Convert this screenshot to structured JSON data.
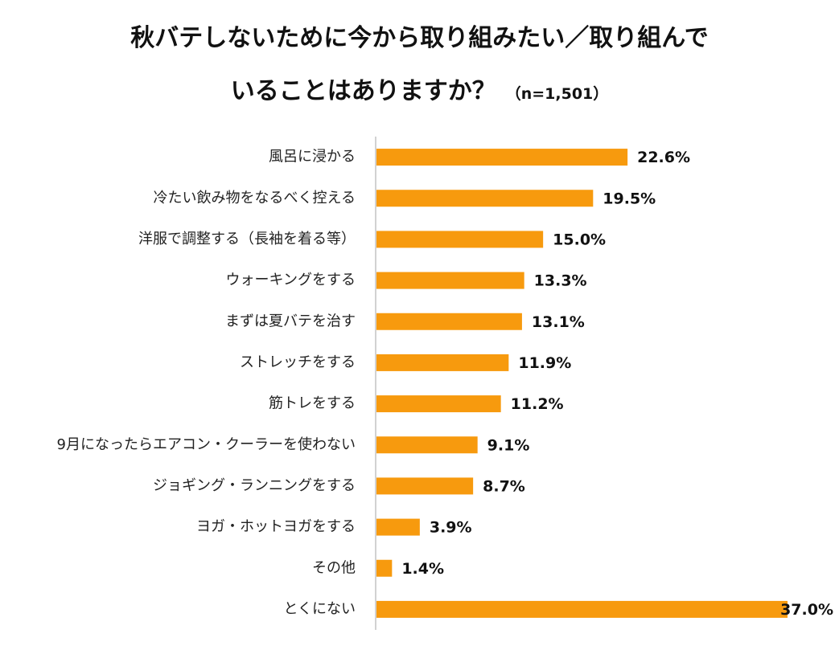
{
  "title": {
    "line1": "秋バテしないために今から取り組みたい／取り組んで",
    "line2": "いることはありますか？",
    "note": "（n=1,501）"
  },
  "colors": {
    "bar": "#F79A0E",
    "axis": "#A6A6A6"
  },
  "chart_data": {
    "type": "bar",
    "orientation": "horizontal",
    "categories": [
      "風呂に浸かる",
      "冷たい飲み物をなるべく控える",
      "洋服で調整する（長袖を着る等）",
      "ウォーキングをする",
      "まずは夏バテを治す",
      "ストレッチをする",
      "筋トレをする",
      "9月になったらエアコン・クーラーを使わない",
      "ジョギング・ランニングをする",
      "ヨガ・ホットヨガをする",
      "その他",
      "とくにない"
    ],
    "values": [
      22.6,
      19.5,
      15.0,
      13.3,
      13.1,
      11.9,
      11.2,
      9.1,
      8.7,
      3.9,
      1.4,
      37.0
    ],
    "value_labels": [
      "22.6%",
      "19.5%",
      "15.0%",
      "13.3%",
      "13.1%",
      "11.9%",
      "11.2%",
      "9.1%",
      "8.7%",
      "3.9%",
      "1.4%",
      "37.0%"
    ],
    "unit": "%",
    "xlim": [
      0,
      37.0
    ],
    "grid": false,
    "legend": "none"
  }
}
